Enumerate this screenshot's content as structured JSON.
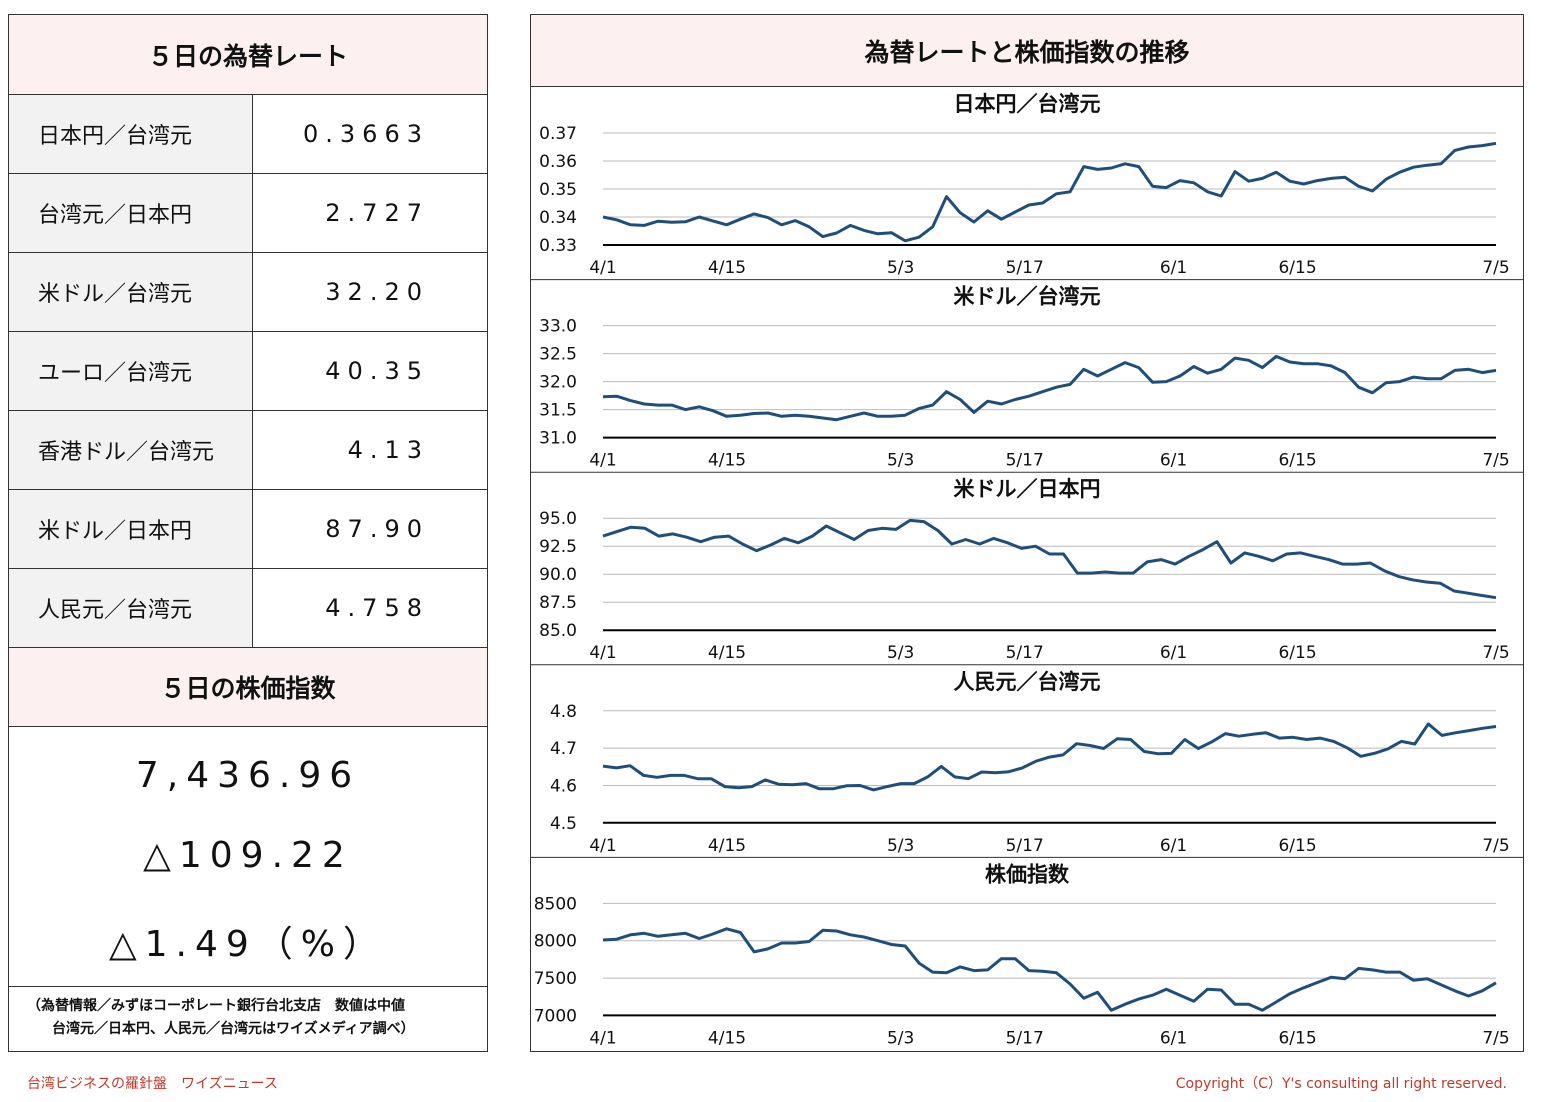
{
  "left": {
    "rates_title": "５日の為替レート",
    "rates": [
      {
        "name": "日本円／台湾元",
        "value": "0.3663"
      },
      {
        "name": "台湾元／日本円",
        "value": "2.727"
      },
      {
        "name": "米ドル／台湾元",
        "value": "32.20"
      },
      {
        "name": "ユーロ／台湾元",
        "value": "40.35"
      },
      {
        "name": "香港ドル／台湾元",
        "value": "4.13"
      },
      {
        "name": "米ドル／日本円",
        "value": "87.90"
      },
      {
        "name": "人民元／台湾元",
        "value": "4.758"
      }
    ],
    "stock_title": "５日の株価指数",
    "stock_value": "7,436.96",
    "stock_change": "△109.22",
    "stock_pct": "△1.49（%）",
    "source_line1": "（為替情報／みずほコーポレート銀行台北支店　数値は中値",
    "source_line2": "台湾元／日本円、人民元／台湾元はワイズメディア調べ）"
  },
  "right": {
    "title": "為替レートと株価指数の推移"
  },
  "colors": {
    "line": "#1f4e79",
    "header_bg": "#fdf0f0",
    "name_bg": "#f2f2f2",
    "footer": "#c0392b"
  },
  "footer": {
    "left": "台湾ビジネスの羅針盤　ワイズニュース",
    "right": "Copyright（C）Y's consulting all right reserved."
  },
  "chart_data": [
    {
      "type": "line",
      "title": "日本円／台湾元",
      "ylim": [
        0.33,
        0.37
      ],
      "yticks": [
        "0.37",
        "0.36",
        "0.35",
        "0.34",
        "0.33"
      ],
      "xticks": [
        "4/1",
        "4/15",
        "5/3",
        "5/17",
        "6/1",
        "6/15",
        "7/5"
      ],
      "xtick_pos": [
        0,
        10,
        24,
        34,
        46,
        56,
        72
      ],
      "values": [
        0.34,
        0.339,
        0.3372,
        0.337,
        0.3385,
        0.3381,
        0.3383,
        0.34,
        0.3386,
        0.3372,
        0.3392,
        0.3411,
        0.3398,
        0.3372,
        0.3387,
        0.3365,
        0.333,
        0.3343,
        0.337,
        0.3352,
        0.334,
        0.3344,
        0.3315,
        0.3328,
        0.3365,
        0.3473,
        0.3415,
        0.3382,
        0.3422,
        0.3392,
        0.3418,
        0.3443,
        0.345,
        0.3483,
        0.349,
        0.358,
        0.357,
        0.3575,
        0.359,
        0.358,
        0.351,
        0.3505,
        0.353,
        0.3522,
        0.349,
        0.3475,
        0.3562,
        0.3528,
        0.3538,
        0.356,
        0.3528,
        0.3518,
        0.353,
        0.3538,
        0.3542,
        0.351,
        0.3493,
        0.3535,
        0.356,
        0.3578,
        0.3585,
        0.359,
        0.3638,
        0.365,
        0.3655,
        0.3663
      ]
    },
    {
      "type": "line",
      "title": "米ドル／台湾元",
      "ylim": [
        31.0,
        33.0
      ],
      "yticks": [
        "33.0",
        "32.5",
        "32.0",
        "31.5",
        "31.0"
      ],
      "xticks": [
        "4/1",
        "4/15",
        "5/3",
        "5/17",
        "6/1",
        "6/15",
        "7/5"
      ],
      "xtick_pos": [
        0,
        10,
        24,
        34,
        46,
        56,
        72
      ],
      "values": [
        31.73,
        31.74,
        31.66,
        31.6,
        31.58,
        31.58,
        31.5,
        31.55,
        31.48,
        31.38,
        31.4,
        31.43,
        31.44,
        31.38,
        31.4,
        31.38,
        31.35,
        31.32,
        31.38,
        31.44,
        31.38,
        31.38,
        31.4,
        31.52,
        31.58,
        31.82,
        31.68,
        31.45,
        31.65,
        31.6,
        31.68,
        31.74,
        31.82,
        31.9,
        31.95,
        32.22,
        32.1,
        32.22,
        32.34,
        32.25,
        31.99,
        32.0,
        32.1,
        32.27,
        32.15,
        32.22,
        32.42,
        32.38,
        32.25,
        32.45,
        32.35,
        32.32,
        32.32,
        32.28,
        32.16,
        31.9,
        31.8,
        31.98,
        32.0,
        32.08,
        32.05,
        32.05,
        32.2,
        32.22,
        32.16,
        32.2
      ]
    },
    {
      "type": "line",
      "title": "米ドル／日本円",
      "ylim": [
        85.0,
        95.0
      ],
      "yticks": [
        "95.0",
        "92.5",
        "90.0",
        "87.5",
        "85.0"
      ],
      "xticks": [
        "4/1",
        "4/15",
        "5/3",
        "5/17",
        "6/1",
        "6/15",
        "7/5"
      ],
      "xtick_pos": [
        0,
        10,
        24,
        34,
        46,
        56,
        72
      ],
      "values": [
        93.4,
        93.8,
        94.2,
        94.1,
        93.4,
        93.6,
        93.3,
        92.9,
        93.3,
        93.4,
        92.7,
        92.1,
        92.6,
        93.2,
        92.8,
        93.4,
        94.3,
        93.7,
        93.1,
        93.9,
        94.1,
        94.0,
        94.8,
        94.7,
        93.9,
        92.7,
        93.1,
        92.7,
        93.2,
        92.8,
        92.3,
        92.5,
        91.8,
        91.8,
        90.1,
        90.1,
        90.2,
        90.1,
        90.1,
        91.1,
        91.3,
        90.9,
        91.6,
        92.2,
        92.9,
        91.0,
        91.9,
        91.6,
        91.2,
        91.8,
        91.9,
        91.6,
        91.3,
        90.9,
        90.9,
        91.0,
        90.3,
        89.8,
        89.5,
        89.3,
        89.2,
        88.5,
        88.3,
        88.1,
        87.9
      ]
    },
    {
      "type": "line",
      "title": "人民元／台湾元",
      "ylim": [
        4.5,
        4.8
      ],
      "yticks": [
        "4.8",
        "4.7",
        "4.6",
        "4.5"
      ],
      "xticks": [
        "4/1",
        "4/15",
        "5/3",
        "5/17",
        "6/1",
        "6/15",
        "7/5"
      ],
      "xtick_pos": [
        0,
        10,
        24,
        34,
        46,
        56,
        72
      ],
      "values": [
        4.652,
        4.647,
        4.653,
        4.627,
        4.622,
        4.627,
        4.627,
        4.618,
        4.618,
        4.597,
        4.594,
        4.597,
        4.615,
        4.603,
        4.602,
        4.605,
        4.591,
        4.591,
        4.599,
        4.6,
        4.588,
        4.597,
        4.605,
        4.605,
        4.623,
        4.651,
        4.623,
        4.618,
        4.636,
        4.634,
        4.637,
        4.647,
        4.665,
        4.676,
        4.682,
        4.712,
        4.707,
        4.699,
        4.725,
        4.723,
        4.691,
        4.685,
        4.686,
        4.723,
        4.699,
        4.717,
        4.739,
        4.732,
        4.737,
        4.741,
        4.727,
        4.729,
        4.723,
        4.727,
        4.718,
        4.701,
        4.678,
        4.686,
        4.698,
        4.718,
        4.711,
        4.765,
        4.734,
        4.741,
        4.747,
        4.753,
        4.758
      ]
    },
    {
      "type": "line",
      "title": "株価指数",
      "ylim": [
        7000,
        8500
      ],
      "yticks": [
        "8500",
        "8000",
        "7500",
        "7000"
      ],
      "xticks": [
        "4/1",
        "4/15",
        "5/3",
        "5/17",
        "6/1",
        "6/15",
        "7/5"
      ],
      "xtick_pos": [
        0,
        10,
        24,
        34,
        46,
        56,
        72
      ],
      "values": [
        8010,
        8020,
        8080,
        8100,
        8060,
        8080,
        8100,
        8030,
        8090,
        8160,
        8110,
        7850,
        7890,
        7970,
        7970,
        7990,
        8140,
        8130,
        8080,
        8050,
        8000,
        7950,
        7930,
        7700,
        7580,
        7570,
        7650,
        7600,
        7610,
        7760,
        7760,
        7600,
        7590,
        7570,
        7420,
        7230,
        7310,
        7070,
        7150,
        7220,
        7270,
        7350,
        7270,
        7190,
        7350,
        7340,
        7150,
        7150,
        7070,
        7180,
        7290,
        7370,
        7440,
        7510,
        7490,
        7630,
        7610,
        7580,
        7580,
        7470,
        7490,
        7410,
        7330,
        7260,
        7330,
        7436.96
      ]
    }
  ]
}
